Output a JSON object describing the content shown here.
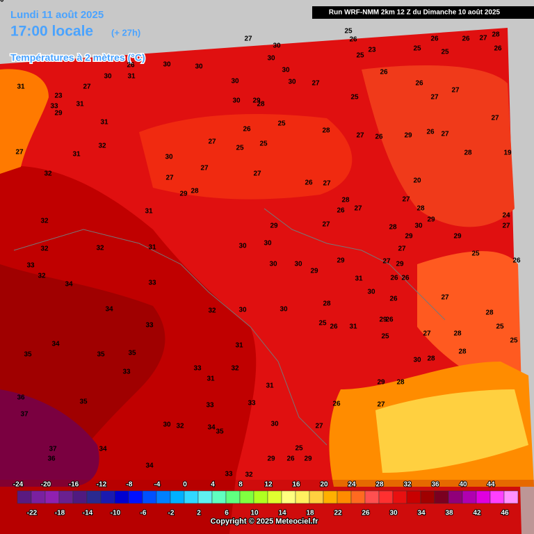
{
  "header": {
    "date": "Lundi 11 août 2025",
    "time": "17:00 locale",
    "lead": "(+ 27h)",
    "field": "Températures à 2 mètres (°C)",
    "run": "Run WRF-NMM 2km 12 Z du Dimanche 10 août 2025"
  },
  "colorbar": {
    "top_labels": [
      "-24",
      "-20",
      "-16",
      "-12",
      "-8",
      "-4",
      "0",
      "4",
      "8",
      "12",
      "16",
      "20",
      "24",
      "28",
      "32",
      "36",
      "40",
      "44"
    ],
    "bottom_labels": [
      "-22",
      "-18",
      "-14",
      "-10",
      "-6",
      "-2",
      "2",
      "6",
      "10",
      "14",
      "18",
      "22",
      "26",
      "30",
      "34",
      "38",
      "42",
      "46"
    ],
    "colors": [
      "#5a1a80",
      "#7a20a0",
      "#9020b0",
      "#6a2090",
      "#501a80",
      "#2a2a90",
      "#1a1ab0",
      "#0000d0",
      "#0010ff",
      "#0050ff",
      "#0080ff",
      "#00b0ff",
      "#30d8ff",
      "#60f0f0",
      "#60ffc0",
      "#60ff80",
      "#80ff40",
      "#b0ff20",
      "#e0ff30",
      "#ffff80",
      "#fff060",
      "#ffd040",
      "#ffb000",
      "#ff8c00",
      "#ff6a20",
      "#ff5050",
      "#ff3030",
      "#e81010",
      "#c80000",
      "#a00000",
      "#7a0020",
      "#90007a",
      "#b000b0",
      "#e000e0",
      "#ff40ff",
      "#ff90ff"
    ]
  },
  "map_labels": [
    "27",
    "30",
    "30",
    "30",
    "30",
    "30",
    "26",
    "30",
    "31",
    "27",
    "23",
    "33",
    "29",
    "31",
    "31",
    "32",
    "31",
    "27",
    "32",
    "32",
    "32",
    "33",
    "32",
    "34",
    "32",
    "31",
    "31",
    "33",
    "34",
    "33",
    "34",
    "35",
    "35",
    "35",
    "33",
    "36",
    "35",
    "37",
    "37",
    "36",
    "34",
    "34",
    "33",
    "34",
    "35",
    "33",
    "30",
    "32",
    "33",
    "32",
    "31",
    "31",
    "31",
    "32",
    "30",
    "30",
    "30",
    "30",
    "30",
    "30",
    "29",
    "29",
    "29",
    "31",
    "30",
    "28",
    "25",
    "26",
    "31",
    "29",
    "26",
    "25",
    "27",
    "28",
    "30",
    "28",
    "28",
    "29",
    "28",
    "27",
    "26",
    "27",
    "30",
    "29",
    "26",
    "29",
    "25",
    "33",
    "32",
    "27",
    "30",
    "30",
    "29",
    "28",
    "30",
    "26",
    "25",
    "25",
    "25",
    "27",
    "30",
    "27",
    "27",
    "29",
    "28",
    "27",
    "26",
    "27",
    "28",
    "27",
    "26",
    "29",
    "26",
    "27",
    "28",
    "19",
    "27",
    "25",
    "26",
    "26",
    "27",
    "25",
    "27",
    "25",
    "26",
    "26",
    "27",
    "28",
    "26",
    "26",
    "23",
    "25",
    "25",
    "20",
    "27",
    "28",
    "29",
    "30",
    "29",
    "29",
    "27",
    "27",
    "29",
    "26",
    "26",
    "26",
    "27",
    "25",
    "26",
    "24",
    "27",
    "28",
    "25",
    "25",
    "26",
    "27",
    "28",
    "27",
    "28",
    "31",
    "20"
  ],
  "footer": {
    "copyright": "Copyright © 2025 Meteociel.fr"
  }
}
